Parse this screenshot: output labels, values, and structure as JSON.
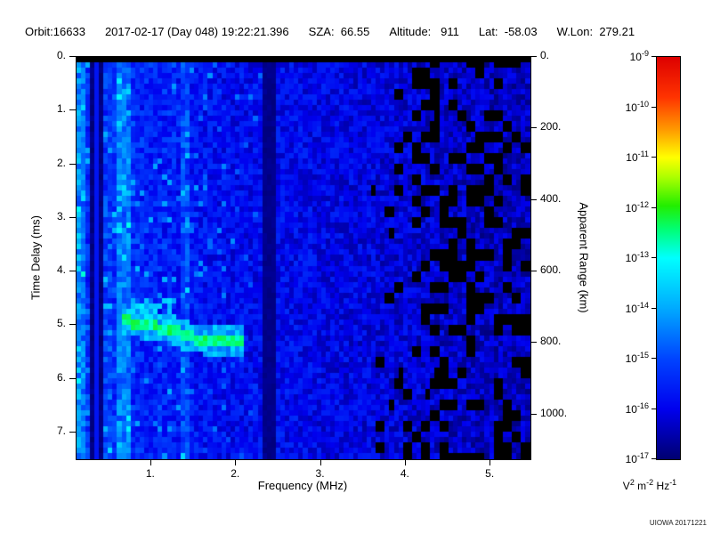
{
  "page": {
    "bg": "#ffffff"
  },
  "header": {
    "items": [
      "Orbit:16633",
      "2017-02-17 (Day 048) 19:22:21.396",
      "SZA:  66.55",
      "Altitude:   911",
      "Lat:  -58.03",
      "W.Lon:  279.21"
    ]
  },
  "footer": {
    "credit": "UIOWA 20171221"
  },
  "chart_data": {
    "type": "heatmap",
    "title": "",
    "xlabel": "Frequency (MHz)",
    "ylabel": "Time Delay (ms)",
    "y2label": "Apparent Range (km)",
    "x_range": [
      0.12,
      5.47
    ],
    "x_ticks": [
      {
        "value": 1,
        "label": "1."
      },
      {
        "value": 2,
        "label": "2."
      },
      {
        "value": 3,
        "label": "3."
      },
      {
        "value": 4,
        "label": "4."
      },
      {
        "value": 5,
        "label": "5."
      }
    ],
    "y_range": [
      0,
      7.5
    ],
    "y_ticks": [
      {
        "value": 0,
        "label": "0."
      },
      {
        "value": 1,
        "label": "1."
      },
      {
        "value": 2,
        "label": "2."
      },
      {
        "value": 3,
        "label": "3."
      },
      {
        "value": 4,
        "label": "4."
      },
      {
        "value": 5,
        "label": "5."
      },
      {
        "value": 6,
        "label": "6."
      },
      {
        "value": 7,
        "label": "7."
      }
    ],
    "y2_range": [
      0,
      1125
    ],
    "y2_ticks": [
      {
        "value": 0,
        "label": "0."
      },
      {
        "value": 200,
        "label": "200."
      },
      {
        "value": 400,
        "label": "400."
      },
      {
        "value": 600,
        "label": "600."
      },
      {
        "value": 800,
        "label": "800."
      },
      {
        "value": 1000,
        "label": "1000."
      }
    ],
    "colorbar": {
      "tick_base": "10",
      "tick_exponents": [
        "-9",
        "-10",
        "-11",
        "-12",
        "-13",
        "-14",
        "-15",
        "-16",
        "-17"
      ],
      "value_range_exp": [
        -17,
        -9
      ],
      "units_segments": [
        {
          "t": "V",
          "sup": false
        },
        {
          "t": "2",
          "sup": true
        },
        {
          "t": " m",
          "sup": false
        },
        {
          "t": "-2",
          "sup": true
        },
        {
          "t": " Hz",
          "sup": false
        },
        {
          "t": "-1",
          "sup": true
        }
      ],
      "stops": [
        {
          "pos": 0.0,
          "color": "#000070"
        },
        {
          "pos": 0.125,
          "color": "#0000ee"
        },
        {
          "pos": 0.25,
          "color": "#0044ff"
        },
        {
          "pos": 0.375,
          "color": "#00aaff"
        },
        {
          "pos": 0.5,
          "color": "#00ffff"
        },
        {
          "pos": 0.57,
          "color": "#00ff77"
        },
        {
          "pos": 0.63,
          "color": "#22ee00"
        },
        {
          "pos": 0.7,
          "color": "#aaff00"
        },
        {
          "pos": 0.75,
          "color": "#ffff00"
        },
        {
          "pos": 0.82,
          "color": "#ff9900"
        },
        {
          "pos": 0.9,
          "color": "#ff3300"
        },
        {
          "pos": 1.0,
          "color": "#dd0000"
        }
      ]
    },
    "features": {
      "seed": 20171221,
      "grid": {
        "cols": 100,
        "rows": 75
      },
      "noise_floor_exp": -16.4,
      "noise_amp_exp": 1.1,
      "top_black_bar_ms": 0.13,
      "low_freq_bright": {
        "f_end": 1.9,
        "max_boost_exp": 1.6
      },
      "bright_columns": [
        {
          "f0": 0.58,
          "f1": 0.78,
          "boost_exp": 1.1
        },
        {
          "f0": 1.33,
          "f1": 1.45,
          "boost_exp": 0.9
        },
        {
          "f0": 0.12,
          "f1": 0.22,
          "boost_exp": 0.8
        }
      ],
      "black_band": {
        "f0": 0.3,
        "f1": 0.44,
        "inner_line_f": 0.37
      },
      "dark_line": {
        "f0": 2.34,
        "f1": 2.47
      },
      "dark_noisy_region": {
        "f_fade_start": 3.6,
        "f_full": 4.4,
        "black_fraction": 0.34
      },
      "right_dimming": {
        "f_start": 2.5,
        "per_mhz_exp": 0.2,
        "max_exp": 0.5
      },
      "echo_trace": {
        "points": [
          [
            0.65,
            4.92
          ],
          [
            0.85,
            4.97
          ],
          [
            1.05,
            5.04
          ],
          [
            1.25,
            5.08
          ],
          [
            1.38,
            5.2
          ],
          [
            1.6,
            5.27
          ],
          [
            1.85,
            5.3
          ],
          [
            2.08,
            5.27
          ]
        ],
        "core_half_width_ms": 0.1,
        "halo_half_width_ms": 0.28,
        "core_exp": -12.5,
        "halo_exp": -14.0
      },
      "pre_trace_patch": {
        "f0": 0.78,
        "f1": 1.28,
        "d0": 4.55,
        "d1": 5.0,
        "exp": -13.6
      }
    }
  }
}
